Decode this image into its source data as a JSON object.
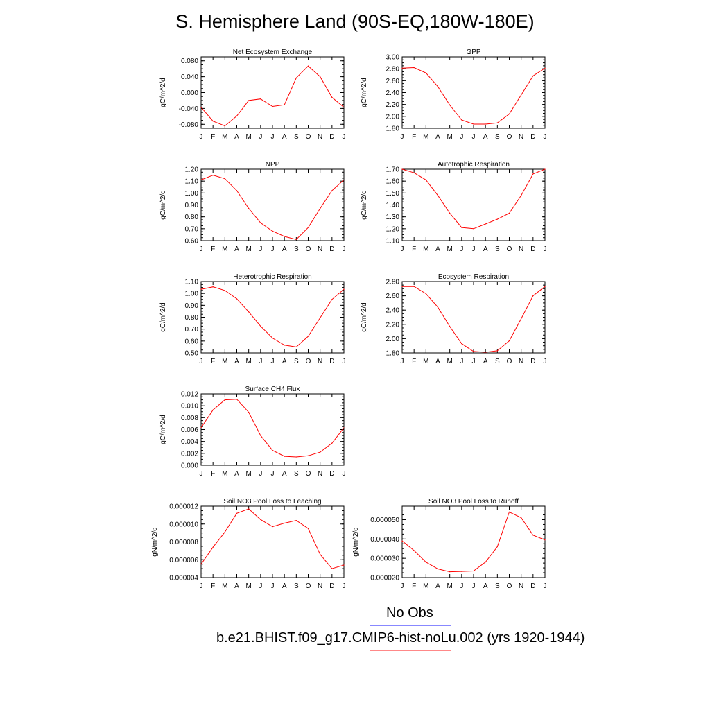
{
  "title": "S. Hemisphere Land (90S-EQ,180W-180E)",
  "months": [
    "J",
    "F",
    "M",
    "A",
    "M",
    "J",
    "J",
    "A",
    "S",
    "O",
    "N",
    "D",
    "J"
  ],
  "line_color": "#ff0000",
  "legend": {
    "obs_label": "No Obs",
    "obs_color": "#8888ff",
    "model_label": "b.e21.BHIST.f09_g17.CMIP6-hist-noLu.002 (yrs 1920-1944)",
    "model_color": "#ff8888"
  },
  "chart_data": [
    {
      "type": "line",
      "title": "Net Ecosystem Exchange",
      "ylabel": "gC/m^2/d",
      "ylim": [
        -0.09,
        0.09
      ],
      "yticks": [
        "0.080",
        "0.040",
        "0.000",
        "-0.040",
        "-0.080"
      ],
      "ytick_values": [
        0.08,
        0.04,
        0.0,
        -0.04,
        -0.08
      ],
      "values": [
        -0.037,
        -0.072,
        -0.084,
        -0.059,
        -0.02,
        -0.016,
        -0.035,
        -0.031,
        0.037,
        0.067,
        0.04,
        -0.012,
        -0.037
      ]
    },
    {
      "type": "line",
      "title": "GPP",
      "ylabel": "gC/m^2/d",
      "ylim": [
        1.8,
        3.0
      ],
      "yticks": [
        "3.00",
        "2.80",
        "2.60",
        "2.40",
        "2.20",
        "2.00",
        "1.80"
      ],
      "ytick_values": [
        3.0,
        2.8,
        2.6,
        2.4,
        2.2,
        2.0,
        1.8
      ],
      "values": [
        2.81,
        2.82,
        2.73,
        2.5,
        2.19,
        1.94,
        1.87,
        1.87,
        1.89,
        2.04,
        2.36,
        2.68,
        2.81
      ]
    },
    {
      "type": "line",
      "title": "NPP",
      "ylabel": "gC/m^2/d",
      "ylim": [
        0.6,
        1.2
      ],
      "yticks": [
        "1.20",
        "1.10",
        "1.00",
        "0.90",
        "0.80",
        "0.70",
        "0.60"
      ],
      "ytick_values": [
        1.2,
        1.1,
        1.0,
        0.9,
        0.8,
        0.7,
        0.6
      ],
      "values": [
        1.11,
        1.15,
        1.12,
        1.02,
        0.87,
        0.75,
        0.68,
        0.635,
        0.61,
        0.71,
        0.87,
        1.02,
        1.11
      ]
    },
    {
      "type": "line",
      "title": "Autotrophic Respiration",
      "ylabel": "gC/m^2/d",
      "ylim": [
        1.1,
        1.7
      ],
      "yticks": [
        "1.70",
        "1.60",
        "1.50",
        "1.40",
        "1.30",
        "1.20",
        "1.10"
      ],
      "ytick_values": [
        1.7,
        1.6,
        1.5,
        1.4,
        1.3,
        1.2,
        1.1
      ],
      "values": [
        1.7,
        1.67,
        1.61,
        1.48,
        1.33,
        1.21,
        1.2,
        1.24,
        1.28,
        1.33,
        1.48,
        1.66,
        1.7
      ]
    },
    {
      "type": "line",
      "title": "Heterotrophic Respiration",
      "ylabel": "gC/m^2/d",
      "ylim": [
        0.5,
        1.1
      ],
      "yticks": [
        "1.10",
        "1.00",
        "0.90",
        "0.80",
        "0.70",
        "0.60",
        "0.50"
      ],
      "ytick_values": [
        1.1,
        1.0,
        0.9,
        0.8,
        0.7,
        0.6,
        0.5
      ],
      "values": [
        1.035,
        1.055,
        1.025,
        0.955,
        0.845,
        0.725,
        0.625,
        0.565,
        0.55,
        0.64,
        0.795,
        0.95,
        1.035
      ]
    },
    {
      "type": "line",
      "title": "Ecosystem Respiration",
      "ylabel": "gC/m^2/d",
      "ylim": [
        1.8,
        2.8
      ],
      "yticks": [
        "2.80",
        "2.60",
        "2.40",
        "2.20",
        "2.00",
        "1.80"
      ],
      "ytick_values": [
        2.8,
        2.6,
        2.4,
        2.2,
        2.0,
        1.8
      ],
      "values": [
        2.73,
        2.73,
        2.63,
        2.44,
        2.17,
        1.93,
        1.82,
        1.81,
        1.83,
        1.97,
        2.28,
        2.6,
        2.73
      ]
    },
    {
      "type": "line",
      "title": "Surface CH4 Flux",
      "ylabel": "gC/m^2/d",
      "ylim": [
        0.0,
        0.012
      ],
      "yticks": [
        "0.012",
        "0.010",
        "0.008",
        "0.006",
        "0.004",
        "0.002",
        "0.000"
      ],
      "ytick_values": [
        0.012,
        0.01,
        0.008,
        0.006,
        0.004,
        0.002,
        0.0
      ],
      "values": [
        0.0063,
        0.0093,
        0.011,
        0.0111,
        0.0089,
        0.005,
        0.0025,
        0.0015,
        0.0014,
        0.0016,
        0.0022,
        0.0037,
        0.0063
      ]
    },
    {
      "type": "line",
      "title": "Soil NO3 Pool Loss to Leaching",
      "ylabel": "gN/m^2/d",
      "ylim": [
        4e-06,
        1.2e-05
      ],
      "yticks": [
        "0.000012",
        "0.000010",
        "0.000008",
        "0.000006",
        "0.000004"
      ],
      "ytick_values": [
        1.2e-05,
        1e-05,
        8e-06,
        6e-06,
        4e-06
      ],
      "values": [
        5.5e-06,
        7.4e-06,
        9.1e-06,
        1.12e-05,
        1.17e-05,
        1.05e-05,
        9.7e-06,
        1.01e-05,
        1.04e-05,
        9.5e-06,
        6.6e-06,
        5e-06,
        5.4e-06
      ]
    },
    {
      "type": "line",
      "title": "Soil NO3 Pool Loss to Runoff",
      "ylabel": "gN/m^2/d",
      "ylim": [
        2e-05,
        5.7e-05
      ],
      "yticks": [
        "0.000050",
        "0.000040",
        "0.000030",
        "0.000020"
      ],
      "ytick_values": [
        5e-05,
        4e-05,
        3e-05,
        2e-05
      ],
      "values": [
        3.9e-05,
        3.4e-05,
        2.8e-05,
        2.45e-05,
        2.3e-05,
        2.32e-05,
        2.34e-05,
        2.8e-05,
        3.6e-05,
        5.4e-05,
        5.1e-05,
        4.2e-05,
        3.95e-05
      ]
    }
  ]
}
